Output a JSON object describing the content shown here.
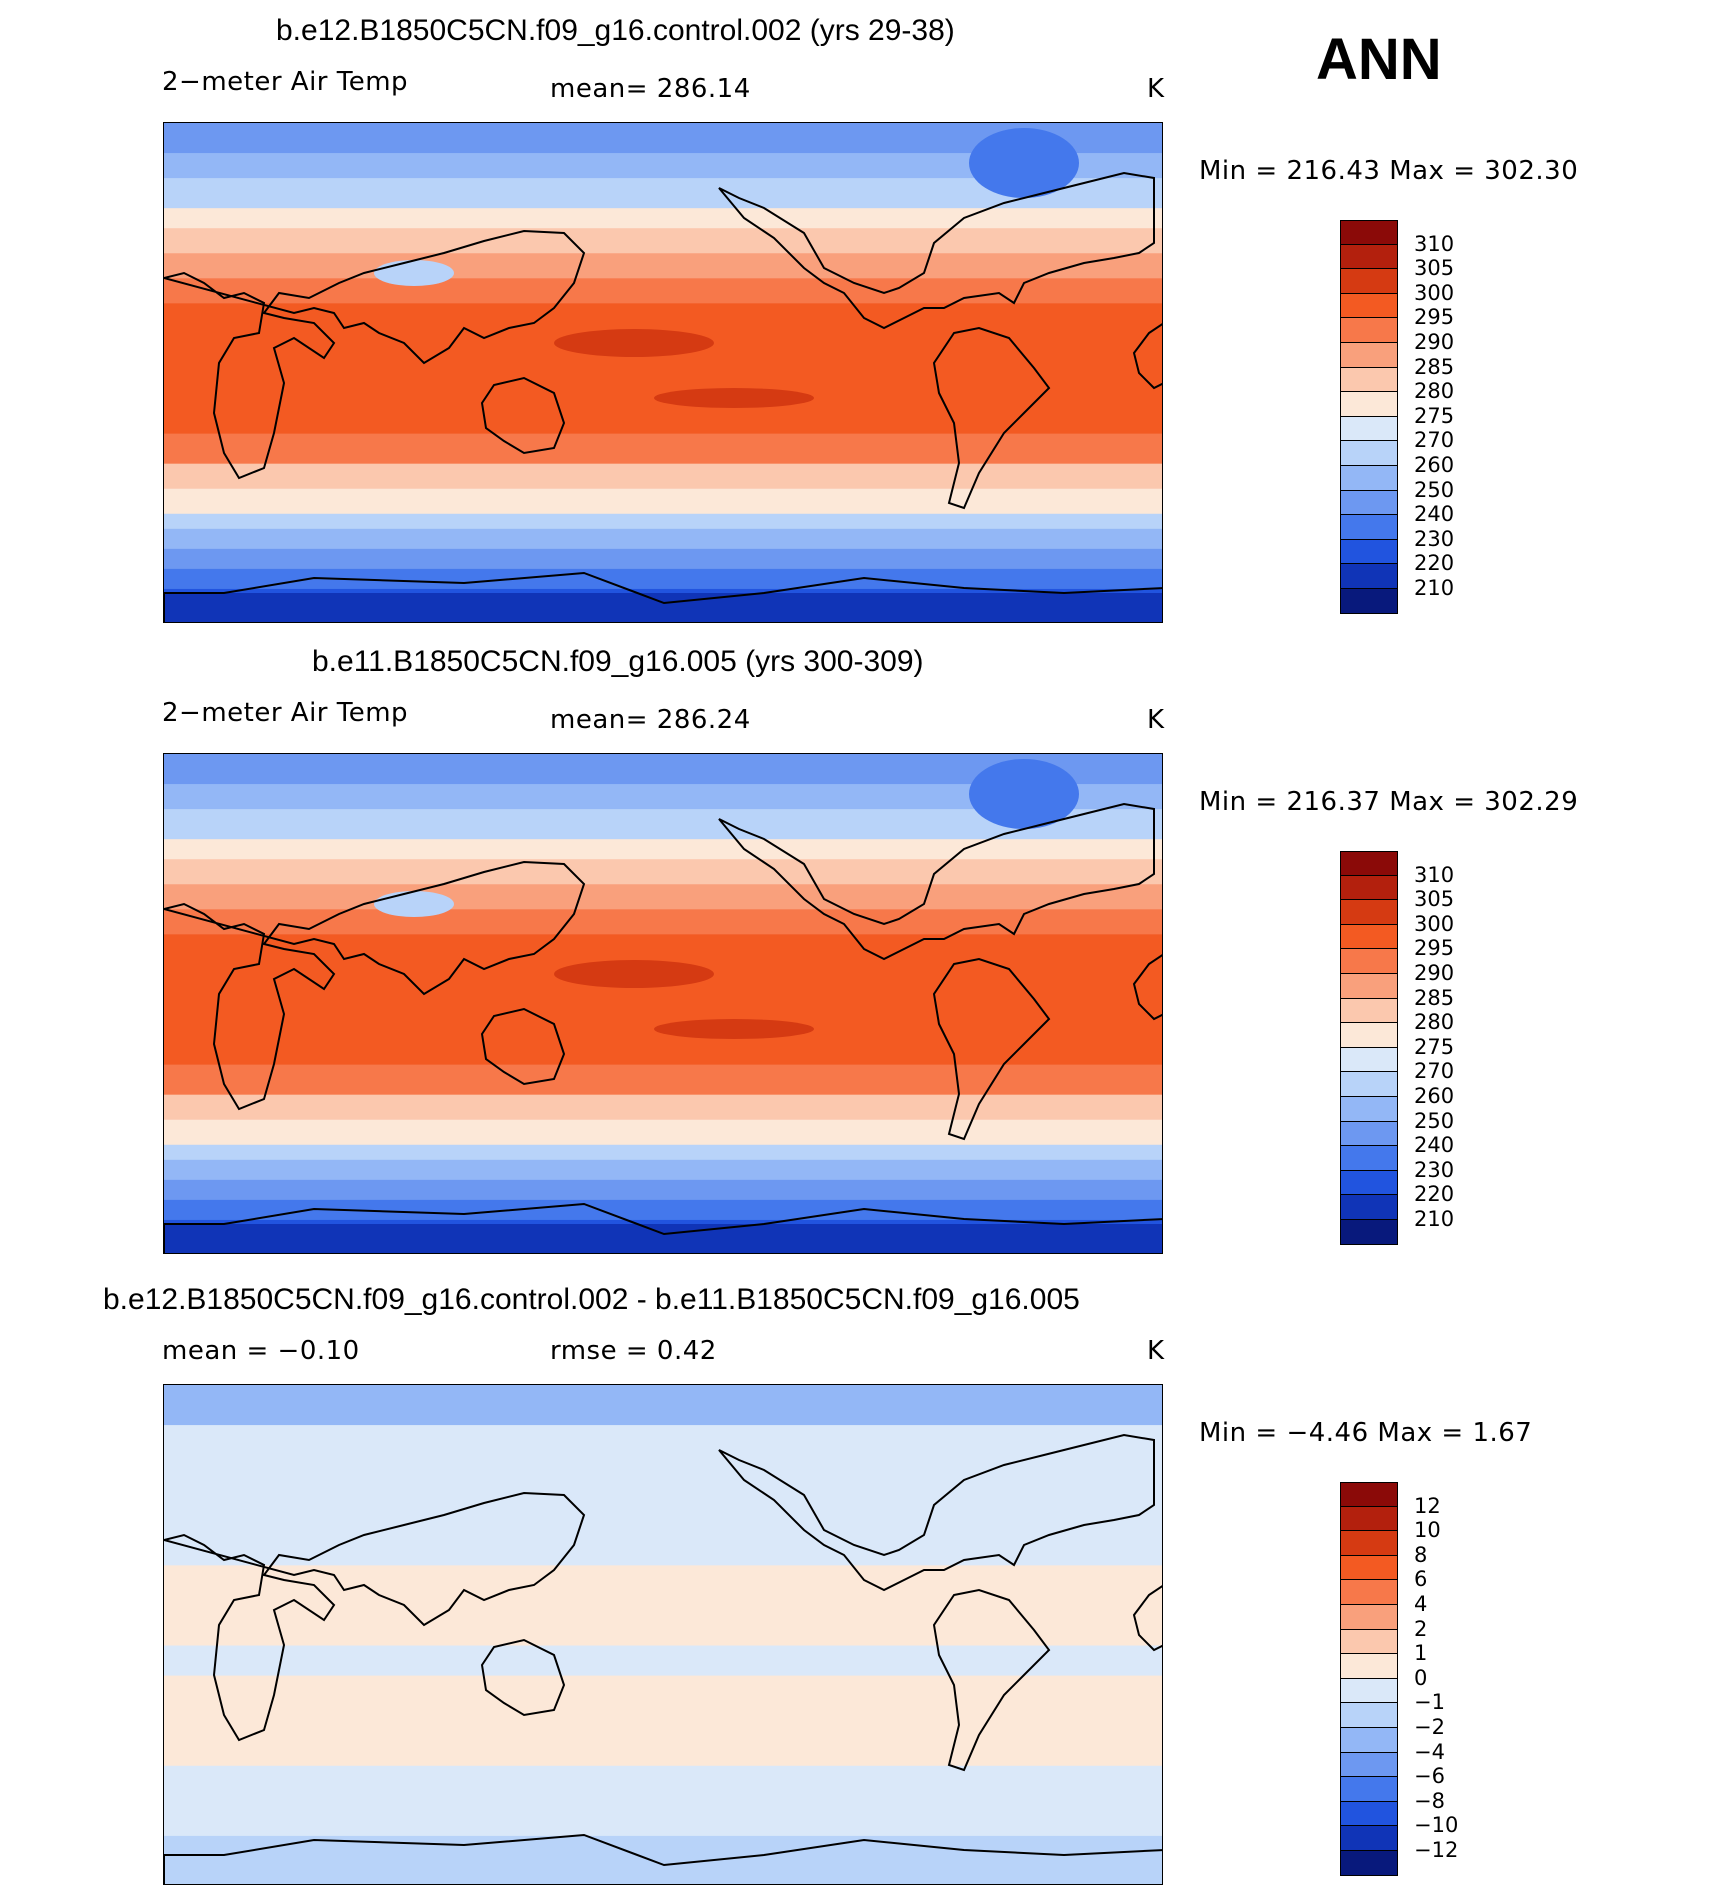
{
  "season": "ANN",
  "panels": [
    {
      "title": "b.e12.B1850C5CN.f09_g16.control.002 (yrs 29-38)",
      "variable": "2−meter Air Temp",
      "stat": "mean=  286.14",
      "units": "K",
      "minmax": "Min  =  216.43  Max  =  302.30",
      "type": "abs"
    },
    {
      "title": "b.e11.B1850C5CN.f09_g16.005 (yrs 300-309)",
      "variable": "2−meter Air Temp",
      "stat": "mean=  286.24",
      "units": "K",
      "minmax": "Min  =  216.37  Max  =  302.29",
      "type": "abs"
    },
    {
      "title": "b.e12.B1850C5CN.f09_g16.control.002 - b.e11.B1850C5CN.f09_g16.005",
      "stat_left": "mean =   −0.10",
      "stat": "rmse =    0.42",
      "units": "K",
      "minmax": "Min  =   −4.46  Max  =    1.67",
      "type": "diff"
    }
  ],
  "colorbars": {
    "abs": {
      "labels": [
        "310",
        "305",
        "300",
        "295",
        "290",
        "285",
        "280",
        "275",
        "270",
        "260",
        "250",
        "240",
        "230",
        "220",
        "210"
      ],
      "colors": [
        "#8b0a08",
        "#b3200d",
        "#d53a12",
        "#f35a22",
        "#f7784a",
        "#f9a07c",
        "#fbc8ae",
        "#fce8d8",
        "#dae8f9",
        "#b8d3f9",
        "#93b7f6",
        "#6d98f1",
        "#4478ec",
        "#2154df",
        "#1034b7",
        "#08197c"
      ]
    },
    "diff": {
      "labels": [
        "12",
        "10",
        "8",
        "6",
        "4",
        "2",
        "1",
        "0",
        "−1",
        "−2",
        "−4",
        "−6",
        "−8",
        "−10",
        "−12"
      ],
      "colors": [
        "#8b0a08",
        "#b3200d",
        "#d53a12",
        "#f35a22",
        "#f7784a",
        "#f9a07c",
        "#fbc8ae",
        "#fce8d8",
        "#dae8f9",
        "#b8d3f9",
        "#93b7f6",
        "#6d98f1",
        "#4478ec",
        "#2154df",
        "#1034b7",
        "#08197c"
      ]
    }
  }
}
